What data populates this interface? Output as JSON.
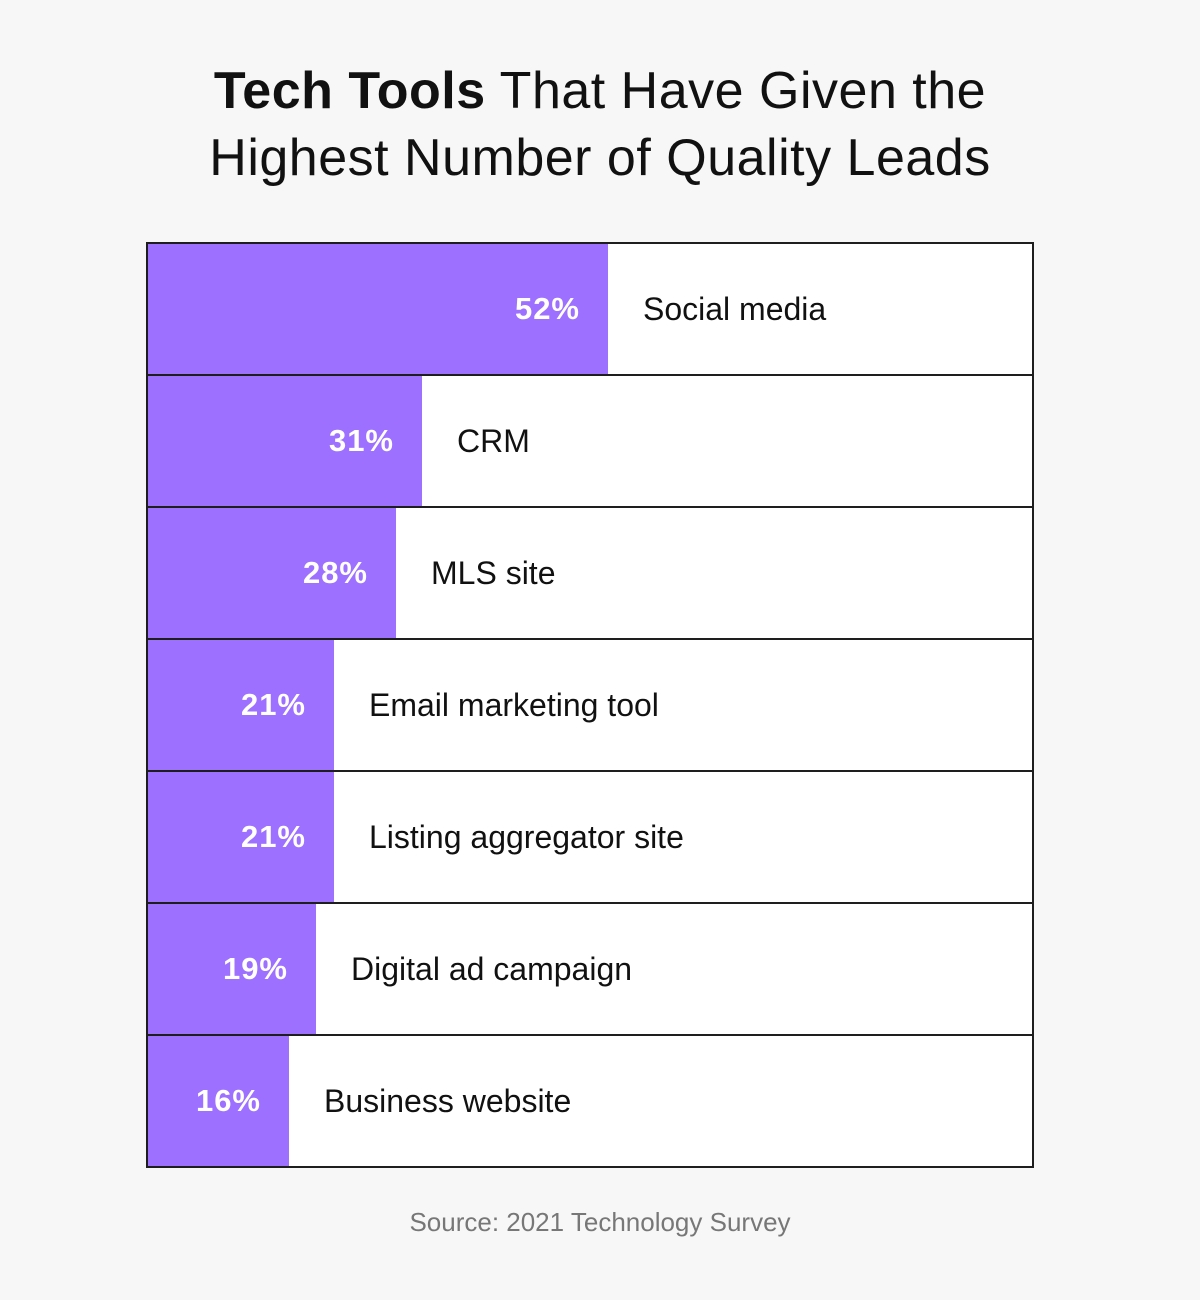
{
  "chart_data": {
    "type": "bar",
    "orientation": "horizontal",
    "title_bold": "Tech Tools",
    "title_rest_line1": " That Have Given the",
    "title_line2": "Highest Number of Quality Leads",
    "categories": [
      "Social media",
      "CRM",
      "MLS site",
      "Email marketing tool",
      "Listing aggregator site",
      "Digital ad campaign",
      "Business website"
    ],
    "values": [
      52,
      31,
      28,
      21,
      21,
      19,
      16
    ],
    "labels": [
      "52%",
      "31%",
      "28%",
      "21%",
      "21%",
      "19%",
      "16%"
    ],
    "xlim": [
      0,
      100
    ],
    "unit": "%",
    "grid": false,
    "bar_color": "#9d70ff",
    "source": "Source: 2021 Technology Survey"
  }
}
